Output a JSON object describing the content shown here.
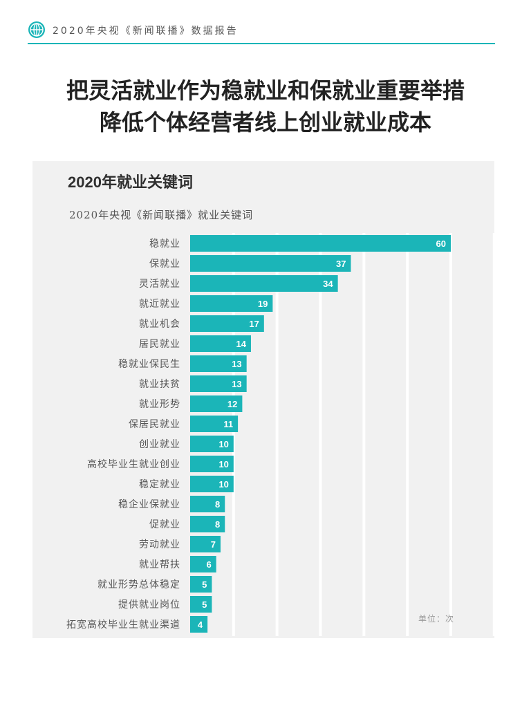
{
  "header": {
    "title": "2020年央视《新闻联播》数据报告",
    "icon": "globe-icon",
    "accent_color": "#1bb5b8"
  },
  "headline": {
    "line1": "把灵活就业作为稳就业和保就业重要举措",
    "line2": "降低个体经营者线上创业就业成本"
  },
  "panel": {
    "title": "2020年就业关键词",
    "subtitle": "2020年央视《新闻联播》就业关键词",
    "unit": "单位：次"
  },
  "chart_data": {
    "type": "bar",
    "orientation": "horizontal",
    "title": "2020年央视《新闻联播》就业关键词",
    "unit": "单位：次",
    "bar_color": "#1bb5b8",
    "grid": true,
    "xlim": [
      0,
      70
    ],
    "categories": [
      "稳就业",
      "保就业",
      "灵活就业",
      "就近就业",
      "就业机会",
      "居民就业",
      "稳就业保民生",
      "就业扶贫",
      "就业形势",
      "保居民就业",
      "创业就业",
      "高校毕业生就业创业",
      "稳定就业",
      "稳企业保就业",
      "促就业",
      "劳动就业",
      "就业帮扶",
      "就业形势总体稳定",
      "提供就业岗位",
      "拓宽高校毕业生就业渠道"
    ],
    "values": [
      60,
      37,
      34,
      19,
      17,
      14,
      13,
      13,
      12,
      11,
      10,
      10,
      10,
      8,
      8,
      7,
      6,
      5,
      5,
      4
    ]
  }
}
